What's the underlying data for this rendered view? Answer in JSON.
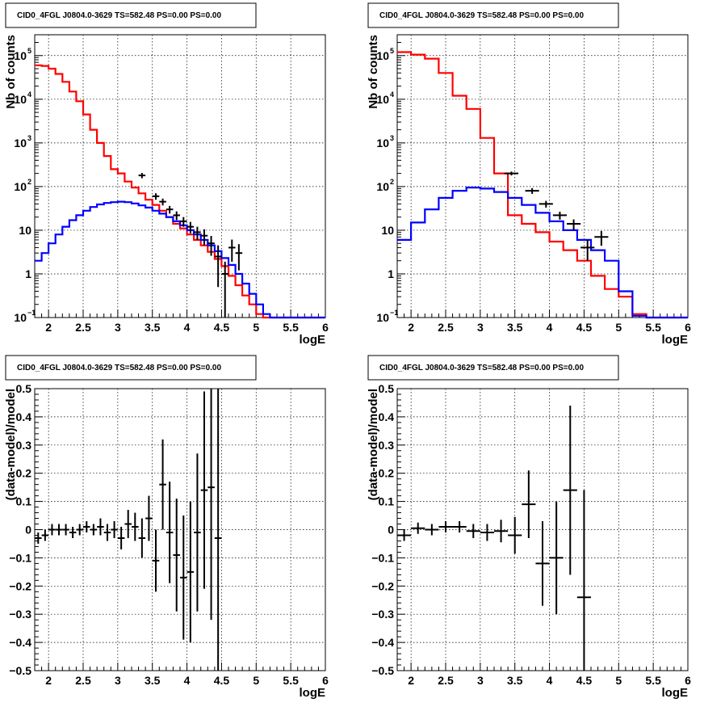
{
  "chart_data": [
    {
      "type": "line",
      "title": "CID0_4FGL J0804.0-3629 TS=582.48 PS=0.00 PS=0.00",
      "xlabel": "logE",
      "ylabel": "Nb of counts",
      "yscale": "log",
      "xlim": [
        1.8,
        6.0
      ],
      "ylim": [
        0.1,
        300000
      ],
      "grid": true,
      "x_ticks": [
        {
          "value": 2,
          "label": "2"
        },
        {
          "value": 2.5,
          "label": "2.5"
        },
        {
          "value": 3,
          "label": "3"
        },
        {
          "value": 3.5,
          "label": "3.5"
        },
        {
          "value": 4,
          "label": "4"
        },
        {
          "value": 4.5,
          "label": "4.5"
        },
        {
          "value": 5,
          "label": "5"
        },
        {
          "value": 5.5,
          "label": "5.5"
        },
        {
          "value": 6,
          "label": "6"
        }
      ],
      "y_ticks": [
        {
          "value": 0.1,
          "label": "10",
          "exp": "−1"
        },
        {
          "value": 1,
          "label": "1",
          "exp": ""
        },
        {
          "value": 10,
          "label": "10",
          "exp": ""
        },
        {
          "value": 100,
          "label": "10",
          "exp": "2"
        },
        {
          "value": 1000,
          "label": "10",
          "exp": "3"
        },
        {
          "value": 10000,
          "label": "10",
          "exp": "4"
        },
        {
          "value": 100000,
          "label": "10",
          "exp": "5"
        }
      ],
      "series": [
        {
          "color": "#ff0000",
          "kind": "step",
          "edges": [
            1.8,
            1.9,
            2.0,
            2.1,
            2.2,
            2.3,
            2.4,
            2.5,
            2.6,
            2.7,
            2.8,
            2.9,
            3.0,
            3.1,
            3.2,
            3.3,
            3.4,
            3.5,
            3.6,
            3.7,
            3.8,
            3.9,
            4.0,
            4.1,
            4.2,
            4.3,
            4.4,
            4.5,
            4.6,
            4.7,
            4.8,
            4.9,
            5.0,
            5.1,
            5.2,
            5.3,
            5.4,
            5.5,
            5.6,
            5.7,
            5.8,
            5.9,
            6.0
          ],
          "values": [
            60000,
            58000,
            50000,
            38000,
            25000,
            15000,
            9000,
            4500,
            2000,
            1000,
            500,
            250,
            200,
            130,
            95,
            70,
            50,
            38,
            28,
            20,
            14,
            11,
            8,
            6,
            4.5,
            3.2,
            2.2,
            1.5,
            0.9,
            0.55,
            0.32,
            0.2,
            0.12,
            0.1,
            0.1,
            0.1,
            0.1,
            0.1,
            0.1,
            0.1,
            0.1,
            0.1
          ]
        },
        {
          "color": "#0000ff",
          "kind": "step",
          "edges": [
            1.8,
            1.9,
            2.0,
            2.1,
            2.2,
            2.3,
            2.4,
            2.5,
            2.6,
            2.7,
            2.8,
            2.9,
            3.0,
            3.1,
            3.2,
            3.3,
            3.4,
            3.5,
            3.6,
            3.7,
            3.8,
            3.9,
            4.0,
            4.1,
            4.2,
            4.3,
            4.4,
            4.5,
            4.6,
            4.7,
            4.8,
            4.9,
            5.0,
            5.1,
            5.2,
            5.3,
            5.4,
            5.5,
            5.6,
            5.7,
            5.8,
            5.9,
            6.0
          ],
          "values": [
            2,
            3,
            5,
            8,
            12,
            17,
            22,
            28,
            34,
            39,
            42,
            44,
            45,
            44,
            41,
            37,
            33,
            28,
            24,
            20,
            16,
            13,
            10,
            8,
            6,
            4.5,
            3.3,
            2.3,
            1.6,
            1.0,
            0.6,
            0.35,
            0.2,
            0.12,
            0.1,
            0.1,
            0.1,
            0.1,
            0.1,
            0.1,
            0.1,
            0.1
          ]
        },
        {
          "color": "#000000",
          "kind": "errorbar",
          "points": [
            [
              3.35,
              180,
              25,
              0.05
            ],
            [
              3.55,
              60,
              10,
              0.05
            ],
            [
              3.65,
              45,
              8,
              0.05
            ],
            [
              3.75,
              30,
              6,
              0.05
            ],
            [
              3.85,
              22,
              5,
              0.05
            ],
            [
              3.95,
              16,
              4,
              0.05
            ],
            [
              4.05,
              12,
              3.5,
              0.05
            ],
            [
              4.15,
              9,
              3,
              0.05
            ],
            [
              4.25,
              7.5,
              3,
              0.05
            ],
            [
              4.35,
              5,
              2.4,
              0.05
            ],
            [
              4.45,
              2.5,
              2,
              0.05
            ],
            [
              4.55,
              1,
              0.9,
              0.05
            ],
            [
              4.65,
              4,
              2.1,
              0.05
            ],
            [
              4.75,
              3,
              1.8,
              0.05
            ]
          ]
        }
      ]
    },
    {
      "type": "line",
      "title": "CID0_4FGL J0804.0-3629 TS=582.48 PS=0.00 PS=0.00",
      "xlabel": "logE",
      "ylabel": "Nb of counts",
      "yscale": "log",
      "xlim": [
        1.8,
        6.0
      ],
      "ylim": [
        0.1,
        300000
      ],
      "grid": true,
      "x_ticks": [
        {
          "value": 2,
          "label": "2"
        },
        {
          "value": 2.5,
          "label": "2.5"
        },
        {
          "value": 3,
          "label": "3"
        },
        {
          "value": 3.5,
          "label": "3.5"
        },
        {
          "value": 4,
          "label": "4"
        },
        {
          "value": 4.5,
          "label": "4.5"
        },
        {
          "value": 5,
          "label": "5"
        },
        {
          "value": 5.5,
          "label": "5.5"
        },
        {
          "value": 6,
          "label": "6"
        }
      ],
      "y_ticks": [
        {
          "value": 0.1,
          "label": "10",
          "exp": "−1"
        },
        {
          "value": 1,
          "label": "1",
          "exp": ""
        },
        {
          "value": 10,
          "label": "10",
          "exp": ""
        },
        {
          "value": 100,
          "label": "10",
          "exp": "2"
        },
        {
          "value": 1000,
          "label": "10",
          "exp": "3"
        },
        {
          "value": 10000,
          "label": "10",
          "exp": "4"
        },
        {
          "value": 100000,
          "label": "10",
          "exp": "5"
        }
      ],
      "series": [
        {
          "color": "#ff0000",
          "kind": "step",
          "edges": [
            1.8,
            2.0,
            2.2,
            2.4,
            2.6,
            2.8,
            3.0,
            3.2,
            3.4,
            3.6,
            3.8,
            4.0,
            4.2,
            4.4,
            4.6,
            4.8,
            5.0,
            5.2,
            5.4,
            5.6,
            5.8,
            6.0
          ],
          "values": [
            120000,
            105000,
            85000,
            40000,
            12000,
            6000,
            1300,
            200,
            22,
            14,
            9,
            5.5,
            3.5,
            2,
            0.9,
            0.45,
            0.3,
            0.12,
            0.1,
            0.1,
            0.1
          ]
        },
        {
          "color": "#0000ff",
          "kind": "step",
          "edges": [
            1.8,
            2.0,
            2.2,
            2.4,
            2.6,
            2.8,
            3.0,
            3.2,
            3.4,
            3.6,
            3.8,
            4.0,
            4.2,
            4.4,
            4.6,
            4.8,
            5.0,
            5.2,
            5.4,
            5.6,
            5.8,
            6.0
          ],
          "values": [
            6,
            15,
            30,
            55,
            80,
            95,
            90,
            75,
            55,
            38,
            25,
            16,
            10,
            6,
            3.5,
            2,
            0.4,
            0.11,
            0.1,
            0.1,
            0.1
          ]
        },
        {
          "color": "#000000",
          "kind": "errorbar",
          "points": [
            [
              3.45,
              200,
              20,
              0.1
            ],
            [
              3.75,
              80,
              12,
              0.1
            ],
            [
              3.95,
              40,
              7,
              0.1
            ],
            [
              4.15,
              22,
              4.5,
              0.1
            ],
            [
              4.35,
              14,
              3.7,
              0.1
            ],
            [
              4.55,
              4,
              2,
              0.1
            ],
            [
              4.75,
              7,
              2.6,
              0.1
            ]
          ]
        }
      ]
    },
    {
      "type": "scatter",
      "title": "CID0_4FGL J0804.0-3629 TS=582.48 PS=0.00 PS=0.00",
      "xlabel": "logE",
      "ylabel": "(data-model)/model",
      "yscale": "linear",
      "xlim": [
        1.8,
        6.0
      ],
      "ylim": [
        -0.5,
        0.5
      ],
      "grid": true,
      "x_ticks": [
        {
          "value": 2,
          "label": "2"
        },
        {
          "value": 2.5,
          "label": "2.5"
        },
        {
          "value": 3,
          "label": "3"
        },
        {
          "value": 3.5,
          "label": "3.5"
        },
        {
          "value": 4,
          "label": "4"
        },
        {
          "value": 4.5,
          "label": "4.5"
        },
        {
          "value": 5,
          "label": "5"
        },
        {
          "value": 5.5,
          "label": "5.5"
        },
        {
          "value": 6,
          "label": "6"
        }
      ],
      "y_ticks": [
        {
          "value": -0.5,
          "label": "−0.5"
        },
        {
          "value": -0.4,
          "label": "−0.4"
        },
        {
          "value": -0.3,
          "label": "−0.3"
        },
        {
          "value": -0.2,
          "label": "−0.2"
        },
        {
          "value": -0.1,
          "label": "−0.1"
        },
        {
          "value": 0,
          "label": "0"
        },
        {
          "value": 0.1,
          "label": "0.1"
        },
        {
          "value": 0.2,
          "label": "0.2"
        },
        {
          "value": 0.3,
          "label": "0.3"
        },
        {
          "value": 0.4,
          "label": "0.4"
        },
        {
          "value": 0.5,
          "label": "0.5"
        }
      ],
      "series": [
        {
          "color": "#000000",
          "kind": "errorbar",
          "points": [
            [
              1.85,
              -0.03,
              0.02,
              0.05
            ],
            [
              1.95,
              -0.02,
              0.02,
              0.05
            ],
            [
              2.05,
              0.0,
              0.02,
              0.05
            ],
            [
              2.15,
              0.0,
              0.02,
              0.05
            ],
            [
              2.25,
              0.0,
              0.02,
              0.05
            ],
            [
              2.35,
              -0.01,
              0.02,
              0.05
            ],
            [
              2.45,
              0.0,
              0.02,
              0.05
            ],
            [
              2.55,
              0.01,
              0.02,
              0.05
            ],
            [
              2.65,
              0.0,
              0.02,
              0.05
            ],
            [
              2.75,
              0.01,
              0.03,
              0.05
            ],
            [
              2.85,
              -0.01,
              0.03,
              0.05
            ],
            [
              2.95,
              0.0,
              0.03,
              0.05
            ],
            [
              3.05,
              -0.03,
              0.04,
              0.05
            ],
            [
              3.15,
              0.02,
              0.05,
              0.05
            ],
            [
              3.25,
              0.01,
              0.05,
              0.05
            ],
            [
              3.35,
              -0.03,
              0.07,
              0.05
            ],
            [
              3.45,
              0.04,
              0.08,
              0.05
            ],
            [
              3.55,
              -0.11,
              0.11,
              0.05
            ],
            [
              3.65,
              0.16,
              0.16,
              0.05
            ],
            [
              3.75,
              -0.01,
              0.18,
              0.05
            ],
            [
              3.85,
              -0.09,
              0.2,
              0.05
            ],
            [
              3.95,
              -0.17,
              0.22,
              0.05
            ],
            [
              4.05,
              -0.15,
              0.25,
              0.05
            ],
            [
              4.15,
              -0.01,
              0.28,
              0.05
            ],
            [
              4.25,
              0.14,
              0.35,
              0.05
            ],
            [
              4.35,
              0.15,
              0.47,
              0.05
            ],
            [
              4.45,
              -0.03,
              0.6,
              0.05
            ]
          ]
        }
      ]
    },
    {
      "type": "scatter",
      "title": "CID0_4FGL J0804.0-3629 TS=582.48 PS=0.00 PS=0.00",
      "xlabel": "logE",
      "ylabel": "(data-model)/model",
      "yscale": "linear",
      "xlim": [
        1.8,
        6.0
      ],
      "ylim": [
        -0.5,
        0.5
      ],
      "grid": true,
      "x_ticks": [
        {
          "value": 2,
          "label": "2"
        },
        {
          "value": 2.5,
          "label": "2.5"
        },
        {
          "value": 3,
          "label": "3"
        },
        {
          "value": 3.5,
          "label": "3.5"
        },
        {
          "value": 4,
          "label": "4"
        },
        {
          "value": 4.5,
          "label": "4.5"
        },
        {
          "value": 5,
          "label": "5"
        },
        {
          "value": 5.5,
          "label": "5.5"
        },
        {
          "value": 6,
          "label": "6"
        }
      ],
      "y_ticks": [
        {
          "value": -0.5,
          "label": "−0.5"
        },
        {
          "value": -0.4,
          "label": "−0.4"
        },
        {
          "value": -0.3,
          "label": "−0.3"
        },
        {
          "value": -0.2,
          "label": "−0.2"
        },
        {
          "value": -0.1,
          "label": "−0.1"
        },
        {
          "value": 0,
          "label": "0"
        },
        {
          "value": 0.1,
          "label": "0.1"
        },
        {
          "value": 0.2,
          "label": "0.2"
        },
        {
          "value": 0.3,
          "label": "0.3"
        },
        {
          "value": 0.4,
          "label": "0.4"
        },
        {
          "value": 0.5,
          "label": "0.5"
        }
      ],
      "series": [
        {
          "color": "#000000",
          "kind": "errorbar",
          "points": [
            [
              1.9,
              -0.02,
              0.02,
              0.1
            ],
            [
              2.1,
              0.005,
              0.02,
              0.1
            ],
            [
              2.3,
              0.0,
              0.02,
              0.1
            ],
            [
              2.5,
              0.01,
              0.02,
              0.1
            ],
            [
              2.7,
              0.01,
              0.02,
              0.1
            ],
            [
              2.9,
              -0.005,
              0.025,
              0.1
            ],
            [
              3.1,
              -0.01,
              0.03,
              0.1
            ],
            [
              3.3,
              -0.005,
              0.04,
              0.1
            ],
            [
              3.5,
              -0.02,
              0.065,
              0.1
            ],
            [
              3.7,
              0.09,
              0.12,
              0.1
            ],
            [
              3.9,
              -0.12,
              0.15,
              0.1
            ],
            [
              4.1,
              -0.1,
              0.2,
              0.1
            ],
            [
              4.3,
              0.14,
              0.3,
              0.1
            ],
            [
              4.5,
              -0.24,
              0.38,
              0.1
            ]
          ]
        }
      ]
    }
  ]
}
